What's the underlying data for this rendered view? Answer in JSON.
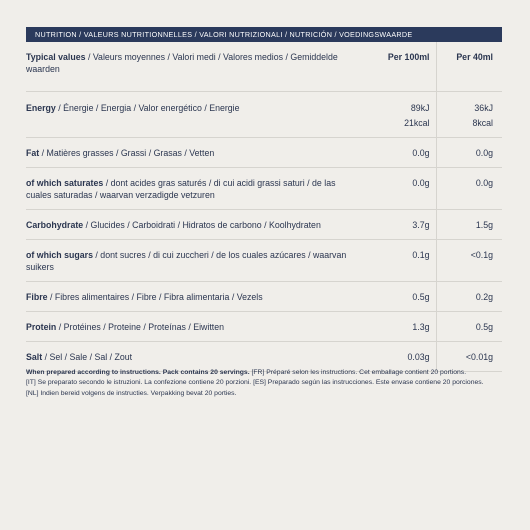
{
  "header": {
    "title": "NUTRITION / VALEURS NUTRITIONNELLES / VALORI NUTRIZIONALI / NUTRICIÓN / VOEDINGSWAARDE"
  },
  "table": {
    "columns": {
      "label_bold": "Typical values",
      "label_rest": " / Valeurs moyennes / Valori medi / Valores medios / Gemiddelde waarden",
      "per100": "Per 100ml",
      "per40": "Per 40ml"
    },
    "rows": [
      {
        "label_bold": "Energy",
        "label_rest": " / Énergie / Energia / Valor energético / Energie",
        "per100": "89kJ",
        "per100_2": "21kcal",
        "per40": "36kJ",
        "per40_2": "8kcal"
      },
      {
        "label_bold": "Fat",
        "label_rest": " / Matières grasses / Grassi / Grasas / Vetten",
        "per100": "0.0g",
        "per40": "0.0g"
      },
      {
        "label_bold": "of which saturates",
        "label_rest": " / dont acides gras saturés / di cui acidi grassi saturi / de las cuales saturadas / waarvan verzadigde vetzuren",
        "per100": "0.0g",
        "per40": "0.0g"
      },
      {
        "label_bold": "Carbohydrate",
        "label_rest": " / Glucides / Carboidrati / Hidratos de carbono / Koolhydraten",
        "per100": "3.7g",
        "per40": "1.5g"
      },
      {
        "label_bold": "of which sugars",
        "label_rest": " / dont sucres / di cui zuccheri / de los cuales azúcares / waarvan suikers",
        "per100": "0.1g",
        "per40": "<0.1g"
      },
      {
        "label_bold": "Fibre",
        "label_rest": " / Fibres alimentaires / Fibre / Fibra alimentaria / Vezels",
        "per100": "0.5g",
        "per40": "0.2g"
      },
      {
        "label_bold": "Protein",
        "label_rest": " / Protéines / Proteine / Proteínas / Eiwitten",
        "per100": "1.3g",
        "per40": "0.5g"
      },
      {
        "label_bold": "Salt",
        "label_rest": " / Sel / Sale / Sal / Zout",
        "per100": "0.03g",
        "per40": "<0.01g"
      }
    ]
  },
  "footnote": {
    "bold": "When prepared according to instructions. Pack contains 20 servings.",
    "fr": " [FR] Préparé selon les instructions. Cet emballage contient 20 portions.",
    "it_es": "[IT] Se preparato secondo le istruzioni. La confezione contiene 20 porzioni. [ES] Preparado según las instrucciones. Este envase contiene 20 porciones.",
    "nl": "[NL] Indien bereid volgens de instructies. Verpakking bevat 20 porties."
  }
}
